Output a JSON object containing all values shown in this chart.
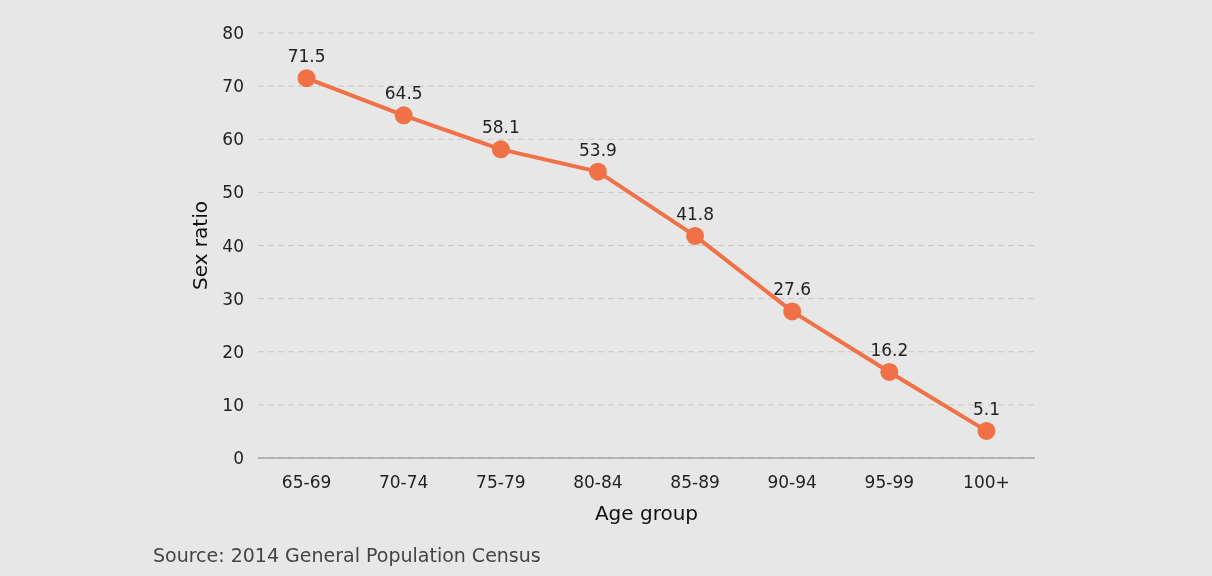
{
  "chart_data": {
    "type": "line",
    "xlabel": "Age group",
    "ylabel": "Sex ratio",
    "categories": [
      "65-69",
      "70-74",
      "75-79",
      "80-84",
      "85-89",
      "90-94",
      "95-99",
      "100+"
    ],
    "values": [
      71.5,
      64.5,
      58.1,
      53.9,
      41.8,
      27.6,
      16.2,
      5.1
    ],
    "color": "#f07146",
    "marker": "circle",
    "data_labels": true,
    "ylim": [
      0,
      80
    ],
    "yticks": [
      0,
      10,
      20,
      30,
      40,
      50,
      60,
      70,
      80
    ],
    "grid": "y",
    "annotations": [
      "Source: 2014 General Population Census"
    ]
  }
}
